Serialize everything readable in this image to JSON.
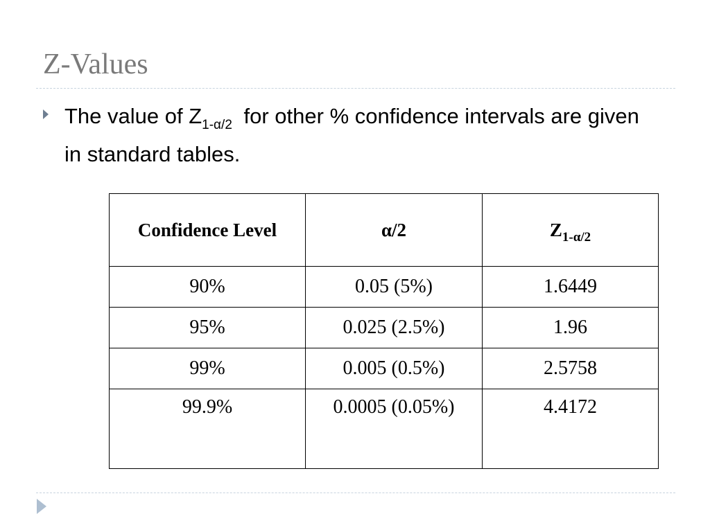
{
  "slide": {
    "title": "Z-Values",
    "bullet": {
      "text_before": "The value of Z",
      "subscript": "1-α/2",
      "text_after": "for other % confidence intervals are given in standard tables."
    }
  },
  "table": {
    "headers": {
      "confidence_level": "Confidence Level",
      "alpha_half": "α/2",
      "z_base": "Z",
      "z_subscript": "1-α/2"
    },
    "rows": [
      {
        "level": "90%",
        "alpha": "0.05 (5%)",
        "z": "1.6449"
      },
      {
        "level": "95%",
        "alpha": "0.025 (2.5%)",
        "z": "1.96"
      },
      {
        "level": "99%",
        "alpha": "0.005 (0.5%)",
        "z": "2.5758"
      },
      {
        "level": "99.9%",
        "alpha": "0.0005 (0.05%)",
        "z": "4.4172"
      }
    ]
  },
  "icons": {
    "bullet": "triangle-bullet-icon",
    "navigation": "next-slide-arrow-icon"
  },
  "colors": {
    "title": "#7a7a7a",
    "bullet": "#6f7f92",
    "divider": "#c7d3de",
    "nav_arrow": "#aebfd1"
  }
}
